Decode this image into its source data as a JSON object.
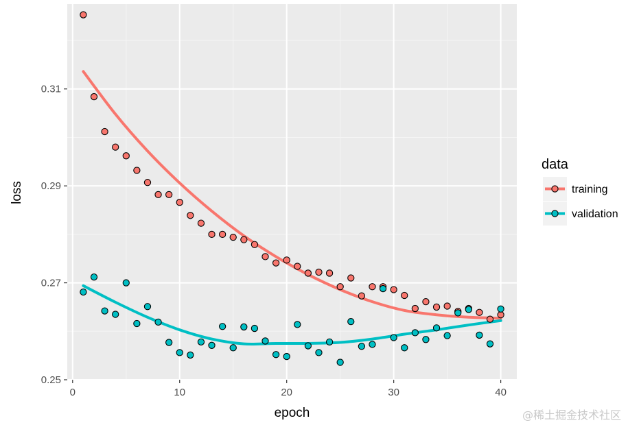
{
  "chart_data": {
    "type": "scatter",
    "xlabel": "epoch",
    "ylabel": "loss",
    "xlim": [
      -0.5,
      41.5
    ],
    "ylim": [
      0.25,
      0.3275
    ],
    "x_ticks": [
      0,
      10,
      20,
      30,
      40
    ],
    "x_tick_labels": [
      "0",
      "10",
      "20",
      "30",
      "40"
    ],
    "y_ticks": [
      0.25,
      0.27,
      0.29,
      0.31
    ],
    "y_tick_labels": [
      "0.25",
      "0.27",
      "0.29",
      "0.31"
    ],
    "grid": true,
    "legend": {
      "title": "data",
      "placement": "right"
    },
    "series": [
      {
        "name": "training",
        "color": "#F8766D",
        "points": [
          [
            1,
            0.3253
          ],
          [
            2,
            0.3084
          ],
          [
            3,
            0.3012
          ],
          [
            4,
            0.298
          ],
          [
            5,
            0.2962
          ],
          [
            6,
            0.2932
          ],
          [
            7,
            0.2907
          ],
          [
            8,
            0.2882
          ],
          [
            9,
            0.2882
          ],
          [
            10,
            0.2866
          ],
          [
            11,
            0.2839
          ],
          [
            12,
            0.2823
          ],
          [
            13,
            0.28
          ],
          [
            14,
            0.28
          ],
          [
            15,
            0.2794
          ],
          [
            16,
            0.2789
          ],
          [
            17,
            0.2779
          ],
          [
            18,
            0.2754
          ],
          [
            19,
            0.2741
          ],
          [
            20,
            0.2747
          ],
          [
            21,
            0.2734
          ],
          [
            22,
            0.272
          ],
          [
            23,
            0.2722
          ],
          [
            24,
            0.272
          ],
          [
            25,
            0.2692
          ],
          [
            26,
            0.271
          ],
          [
            27,
            0.2673
          ],
          [
            28,
            0.2692
          ],
          [
            29,
            0.2692
          ],
          [
            30,
            0.2686
          ],
          [
            31,
            0.2674
          ],
          [
            32,
            0.2647
          ],
          [
            33,
            0.2661
          ],
          [
            34,
            0.265
          ],
          [
            35,
            0.2652
          ],
          [
            36,
            0.2641
          ],
          [
            37,
            0.2647
          ],
          [
            38,
            0.2639
          ],
          [
            39,
            0.2625
          ],
          [
            40,
            0.2634
          ]
        ],
        "smooth": [
          [
            1,
            0.3136
          ],
          [
            4,
            0.3048
          ],
          [
            7,
            0.2972
          ],
          [
            10,
            0.2906
          ],
          [
            13,
            0.2848
          ],
          [
            16,
            0.2797
          ],
          [
            19,
            0.2754
          ],
          [
            22,
            0.2717
          ],
          [
            25,
            0.2686
          ],
          [
            28,
            0.2661
          ],
          [
            31,
            0.2643
          ],
          [
            34,
            0.2634
          ],
          [
            37,
            0.2629
          ],
          [
            40,
            0.2627
          ]
        ]
      },
      {
        "name": "validation",
        "color": "#00BFC4",
        "points": [
          [
            1,
            0.2681
          ],
          [
            2,
            0.2712
          ],
          [
            3,
            0.2642
          ],
          [
            4,
            0.2635
          ],
          [
            5,
            0.27
          ],
          [
            6,
            0.2616
          ],
          [
            7,
            0.2651
          ],
          [
            8,
            0.2619
          ],
          [
            9,
            0.2577
          ],
          [
            10,
            0.2556
          ],
          [
            11,
            0.2551
          ],
          [
            12,
            0.2578
          ],
          [
            13,
            0.2571
          ],
          [
            14,
            0.261
          ],
          [
            15,
            0.2566
          ],
          [
            16,
            0.2609
          ],
          [
            17,
            0.2606
          ],
          [
            18,
            0.258
          ],
          [
            19,
            0.2552
          ],
          [
            20,
            0.2548
          ],
          [
            21,
            0.2614
          ],
          [
            22,
            0.257
          ],
          [
            23,
            0.2556
          ],
          [
            24,
            0.2578
          ],
          [
            25,
            0.2536
          ],
          [
            26,
            0.262
          ],
          [
            27,
            0.2569
          ],
          [
            28,
            0.2573
          ],
          [
            29,
            0.2688
          ],
          [
            30,
            0.2587
          ],
          [
            31,
            0.2566
          ],
          [
            32,
            0.2597
          ],
          [
            33,
            0.2583
          ],
          [
            34,
            0.2607
          ],
          [
            35,
            0.2591
          ],
          [
            36,
            0.2638
          ],
          [
            37,
            0.2645
          ],
          [
            38,
            0.2592
          ],
          [
            39,
            0.2574
          ],
          [
            40,
            0.2646
          ]
        ],
        "smooth": [
          [
            1,
            0.2694
          ],
          [
            4,
            0.266
          ],
          [
            7,
            0.2629
          ],
          [
            10,
            0.2603
          ],
          [
            13,
            0.2584
          ],
          [
            16,
            0.2574
          ],
          [
            19,
            0.2575
          ],
          [
            22,
            0.2575
          ],
          [
            25,
            0.2577
          ],
          [
            28,
            0.2584
          ],
          [
            31,
            0.2594
          ],
          [
            34,
            0.2603
          ],
          [
            37,
            0.2613
          ],
          [
            40,
            0.2622
          ]
        ]
      }
    ]
  },
  "watermark": "@稀土掘金技术社区"
}
